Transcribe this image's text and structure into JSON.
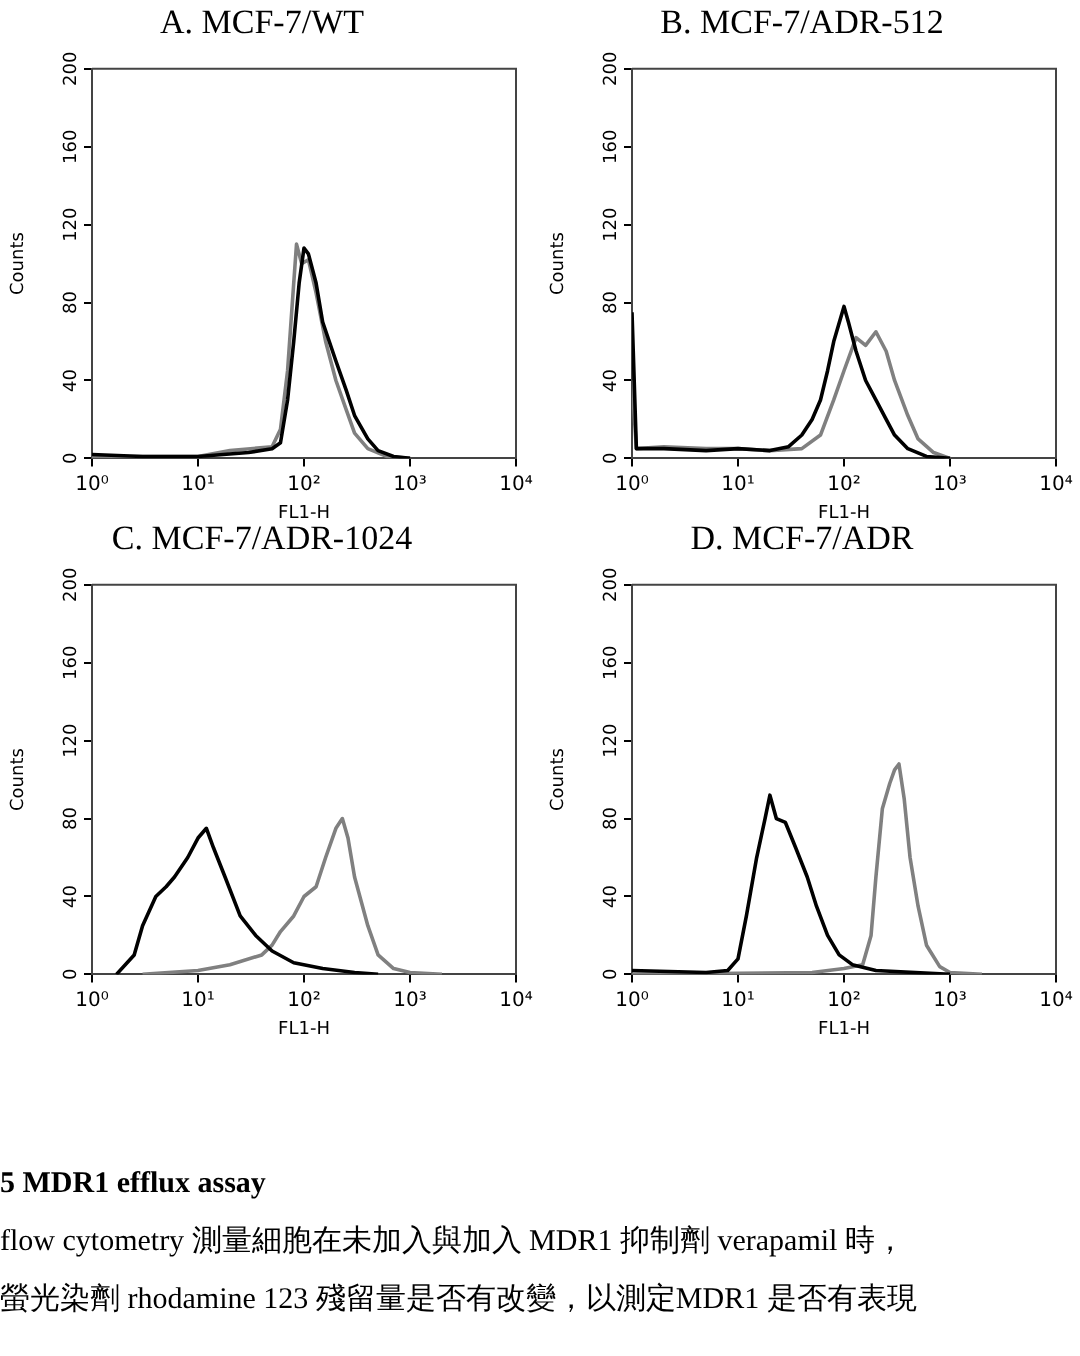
{
  "chart_data": [
    {
      "type": "line",
      "title": "A. MCF-7/WT",
      "xlabel": "FL1-H",
      "ylabel": "Counts",
      "log": "x",
      "grid": false,
      "marker": "none",
      "xlim": [
        1,
        10000
      ],
      "ylim": [
        0,
        200
      ],
      "xticks": [
        {
          "value": 1,
          "label": "10⁰"
        },
        {
          "value": 10,
          "label": "10¹"
        },
        {
          "value": 100,
          "label": "10²"
        },
        {
          "value": 1000,
          "label": "10³"
        },
        {
          "value": 10000,
          "label": "10⁴"
        }
      ],
      "yticks": [
        0,
        40,
        80,
        120,
        160,
        200
      ],
      "series": [
        {
          "color": "#000000",
          "x": [
            1,
            3,
            10,
            30,
            50,
            60,
            70,
            80,
            90,
            100,
            110,
            130,
            150,
            200,
            250,
            300,
            400,
            500,
            700,
            1000
          ],
          "values": [
            2,
            1,
            1,
            3,
            5,
            8,
            30,
            60,
            90,
            108,
            105,
            90,
            70,
            50,
            35,
            22,
            10,
            4,
            1,
            0
          ]
        },
        {
          "color": "#808080",
          "x": [
            1,
            10,
            20,
            50,
            60,
            70,
            80,
            85,
            95,
            110,
            130,
            160,
            200,
            250,
            300,
            400,
            600,
            1000
          ],
          "values": [
            1,
            1,
            4,
            6,
            15,
            45,
            90,
            110,
            100,
            102,
            85,
            60,
            40,
            25,
            13,
            5,
            1,
            0
          ]
        }
      ]
    },
    {
      "type": "line",
      "title": "B. MCF-7/ADR-512",
      "xlabel": "FL1-H",
      "ylabel": "Counts",
      "log": "x",
      "grid": false,
      "marker": "none",
      "xlim": [
        1,
        10000
      ],
      "ylim": [
        0,
        200
      ],
      "xticks": [
        {
          "value": 1,
          "label": "10⁰"
        },
        {
          "value": 10,
          "label": "10¹"
        },
        {
          "value": 100,
          "label": "10²"
        },
        {
          "value": 1000,
          "label": "10³"
        },
        {
          "value": 10000,
          "label": "10⁴"
        }
      ],
      "yticks": [
        0,
        40,
        80,
        120,
        160,
        200
      ],
      "series": [
        {
          "color": "#000000",
          "x": [
            1,
            1.1,
            2,
            5,
            10,
            20,
            30,
            40,
            50,
            60,
            70,
            80,
            100,
            110,
            130,
            160,
            200,
            250,
            300,
            400,
            600,
            1000
          ],
          "values": [
            75,
            5,
            5,
            4,
            5,
            4,
            6,
            12,
            20,
            30,
            45,
            60,
            78,
            70,
            55,
            40,
            30,
            20,
            12,
            5,
            1,
            0
          ]
        },
        {
          "color": "#808080",
          "x": [
            1,
            1.1,
            2,
            5,
            10,
            20,
            40,
            60,
            80,
            100,
            130,
            160,
            200,
            250,
            300,
            400,
            500,
            700,
            1000
          ],
          "values": [
            40,
            5,
            6,
            5,
            5,
            4,
            5,
            12,
            30,
            45,
            62,
            58,
            65,
            55,
            40,
            22,
            10,
            3,
            0
          ]
        }
      ]
    },
    {
      "type": "line",
      "title": "C. MCF-7/ADR-1024",
      "xlabel": "FL1-H",
      "ylabel": "Counts",
      "log": "x",
      "grid": false,
      "marker": "none",
      "xlim": [
        1,
        10000
      ],
      "ylim": [
        0,
        200
      ],
      "xticks": [
        {
          "value": 1,
          "label": "10⁰"
        },
        {
          "value": 10,
          "label": "10¹"
        },
        {
          "value": 100,
          "label": "10²"
        },
        {
          "value": 1000,
          "label": "10³"
        },
        {
          "value": 10000,
          "label": "10⁴"
        }
      ],
      "yticks": [
        0,
        40,
        80,
        120,
        160,
        200
      ],
      "series": [
        {
          "color": "#000000",
          "x": [
            1.7,
            2.5,
            3,
            4,
            5,
            6,
            8,
            10,
            12,
            14,
            18,
            25,
            35,
            50,
            80,
            150,
            300,
            500
          ],
          "values": [
            0,
            10,
            25,
            40,
            45,
            50,
            60,
            70,
            75,
            65,
            50,
            30,
            20,
            12,
            6,
            3,
            1,
            0
          ]
        },
        {
          "color": "#808080",
          "x": [
            3,
            10,
            20,
            40,
            50,
            60,
            80,
            100,
            130,
            160,
            200,
            230,
            260,
            300,
            400,
            500,
            700,
            1000,
            2000
          ],
          "values": [
            0,
            2,
            5,
            10,
            15,
            22,
            30,
            40,
            45,
            60,
            75,
            80,
            70,
            50,
            25,
            10,
            3,
            1,
            0
          ]
        }
      ]
    },
    {
      "type": "line",
      "title": "D. MCF-7/ADR",
      "xlabel": "FL1-H",
      "ylabel": "Counts",
      "log": "x",
      "grid": false,
      "marker": "none",
      "xlim": [
        1,
        10000
      ],
      "ylim": [
        0,
        200
      ],
      "xticks": [
        {
          "value": 1,
          "label": "10⁰"
        },
        {
          "value": 10,
          "label": "10¹"
        },
        {
          "value": 100,
          "label": "10²"
        },
        {
          "value": 1000,
          "label": "10³"
        },
        {
          "value": 10000,
          "label": "10⁴"
        }
      ],
      "yticks": [
        0,
        40,
        80,
        120,
        160,
        200
      ],
      "series": [
        {
          "color": "#000000",
          "x": [
            1,
            5,
            8,
            10,
            12,
            15,
            18,
            20,
            23,
            28,
            35,
            45,
            55,
            70,
            90,
            120,
            200,
            1000
          ],
          "values": [
            2,
            1,
            2,
            8,
            30,
            60,
            80,
            92,
            80,
            78,
            65,
            50,
            35,
            20,
            10,
            5,
            2,
            0
          ]
        },
        {
          "color": "#808080",
          "x": [
            1,
            50,
            100,
            150,
            180,
            200,
            230,
            270,
            300,
            330,
            370,
            420,
            500,
            600,
            800,
            1000,
            2000
          ],
          "values": [
            0,
            1,
            3,
            5,
            20,
            50,
            85,
            98,
            105,
            108,
            90,
            60,
            35,
            15,
            4,
            1,
            0
          ]
        }
      ]
    },
    {
      "type": "other",
      "annotations": [
        "5 MDR1 efflux assay",
        "flow cytometry 測量細胞在未加入與加入 MDR1 抑制劑 verapamil 時，",
        "螢光染劑 rhodamine 123 殘留量是否有改變，以測定MDR1 是否有表現"
      ]
    }
  ]
}
